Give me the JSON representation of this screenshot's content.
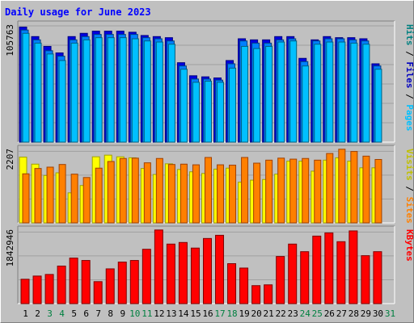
{
  "title": "Daily usage for June 2023",
  "colors": {
    "background": "#c0c0c0",
    "title": "#0000ff",
    "hits": "#0080ff",
    "hits_edge": "#0000c0",
    "files": "#00c0ff",
    "files_edge": "#0060a0",
    "pages": "#00e0ff",
    "visits": "#ffff00",
    "visits_edge": "#a0a000",
    "sites": "#ff8000",
    "sites_edge": "#a04000",
    "kbytes": "#ff0000",
    "kbytes_edge": "#800000",
    "weekend_day": "#008040",
    "weekday": "#000000"
  },
  "chart_data": [
    {
      "type": "bar",
      "panel": "hits",
      "legend": [
        {
          "label": "Pages",
          "color": "#00c0ff"
        },
        {
          "label": "Files",
          "color": "#0000c0"
        },
        {
          "label": "Hits",
          "color": "#008080"
        }
      ],
      "max_label": "105763",
      "ylim": [
        0,
        105763
      ],
      "categories": [
        "1",
        "2",
        "3",
        "4",
        "5",
        "6",
        "7",
        "8",
        "9",
        "10",
        "11",
        "12",
        "13",
        "14",
        "15",
        "16",
        "17",
        "18",
        "19",
        "20",
        "21",
        "22",
        "23",
        "24",
        "25",
        "26",
        "27",
        "28",
        "29",
        "30"
      ],
      "series": [
        {
          "name": "Hits",
          "values": [
            105763,
            97000,
            88000,
            82000,
            97000,
            100000,
            102000,
            102000,
            102000,
            101000,
            98000,
            97000,
            96000,
            73000,
            61000,
            60000,
            59000,
            75000,
            95000,
            94000,
            94000,
            97000,
            97000,
            77000,
            94000,
            97000,
            96000,
            96000,
            95000,
            72000
          ]
        },
        {
          "name": "Files",
          "values": [
            103000,
            94000,
            84000,
            79000,
            94000,
            97000,
            99000,
            99000,
            99000,
            99000,
            96000,
            95000,
            93000,
            70000,
            58000,
            58000,
            57000,
            72000,
            93000,
            91000,
            91000,
            94000,
            95000,
            74000,
            93000,
            95000,
            95000,
            94000,
            93000,
            70000
          ]
        },
        {
          "name": "Pages",
          "values": [
            100000,
            91000,
            81000,
            75000,
            91000,
            94000,
            96000,
            96000,
            96000,
            95000,
            93000,
            92000,
            90000,
            67000,
            55000,
            56000,
            55000,
            68000,
            88000,
            86000,
            88000,
            92000,
            93000,
            70000,
            90000,
            92000,
            92000,
            91000,
            90000,
            67000
          ]
        }
      ]
    },
    {
      "type": "bar",
      "panel": "visits",
      "legend": [
        {
          "label": "Sites",
          "color": "#ff8000"
        },
        {
          "label": "Visits",
          "color": "#c0c000"
        }
      ],
      "max_label": "2207",
      "ylim": [
        0,
        2207
      ],
      "categories": [
        "1",
        "2",
        "3",
        "4",
        "5",
        "6",
        "7",
        "8",
        "9",
        "10",
        "11",
        "12",
        "13",
        "14",
        "15",
        "16",
        "17",
        "18",
        "19",
        "20",
        "21",
        "22",
        "23",
        "24",
        "25",
        "26",
        "27",
        "28",
        "29",
        "30"
      ],
      "series": [
        {
          "name": "Visits",
          "values": [
            1970,
            1760,
            1420,
            1500,
            900,
            1120,
            1980,
            2030,
            1980,
            1950,
            1630,
            1450,
            1770,
            1600,
            1530,
            1480,
            1610,
            1640,
            1220,
            1280,
            1300,
            1460,
            1850,
            1850,
            1550,
            1880,
            1950,
            1850,
            1650,
            1650
          ]
        },
        {
          "name": "Sites",
          "values": [
            1470,
            1630,
            1670,
            1750,
            1460,
            1360,
            1640,
            1840,
            1930,
            1940,
            1800,
            1930,
            1750,
            1760,
            1740,
            1960,
            1740,
            1730,
            1960,
            1790,
            1880,
            1940,
            1910,
            1930,
            1880,
            2080,
            2207,
            2140,
            2000,
            1900
          ]
        }
      ]
    },
    {
      "type": "bar",
      "panel": "kbytes",
      "legend": [
        {
          "label": "KBytes",
          "color": "#ff0000"
        }
      ],
      "max_label": "1842946",
      "ylim": [
        0,
        1842946
      ],
      "categories": [
        "1",
        "2",
        "3",
        "4",
        "5",
        "6",
        "7",
        "8",
        "9",
        "10",
        "11",
        "12",
        "13",
        "14",
        "15",
        "16",
        "17",
        "18",
        "19",
        "20",
        "21",
        "22",
        "23",
        "24",
        "25",
        "26",
        "27",
        "28",
        "29",
        "30"
      ],
      "series": [
        {
          "name": "KBytes",
          "values": [
            610000,
            690000,
            730000,
            940000,
            1140000,
            1080000,
            550000,
            870000,
            1040000,
            1080000,
            1360000,
            1842946,
            1490000,
            1530000,
            1390000,
            1630000,
            1710000,
            1000000,
            890000,
            450000,
            470000,
            1180000,
            1490000,
            1300000,
            1690000,
            1770000,
            1550000,
            1820000,
            1200000,
            1300000
          ]
        }
      ]
    }
  ],
  "x_axis_labels": [
    {
      "day": "1",
      "weekend": false
    },
    {
      "day": "2",
      "weekend": false
    },
    {
      "day": "3",
      "weekend": true
    },
    {
      "day": "4",
      "weekend": true
    },
    {
      "day": "5",
      "weekend": false
    },
    {
      "day": "6",
      "weekend": false
    },
    {
      "day": "7",
      "weekend": false
    },
    {
      "day": "8",
      "weekend": false
    },
    {
      "day": "9",
      "weekend": false
    },
    {
      "day": "10",
      "weekend": true
    },
    {
      "day": "11",
      "weekend": true
    },
    {
      "day": "12",
      "weekend": false
    },
    {
      "day": "13",
      "weekend": false
    },
    {
      "day": "14",
      "weekend": false
    },
    {
      "day": "15",
      "weekend": false
    },
    {
      "day": "16",
      "weekend": false
    },
    {
      "day": "17",
      "weekend": true
    },
    {
      "day": "18",
      "weekend": true
    },
    {
      "day": "19",
      "weekend": false
    },
    {
      "day": "20",
      "weekend": false
    },
    {
      "day": "21",
      "weekend": false
    },
    {
      "day": "22",
      "weekend": false
    },
    {
      "day": "23",
      "weekend": false
    },
    {
      "day": "24",
      "weekend": true
    },
    {
      "day": "25",
      "weekend": true
    },
    {
      "day": "26",
      "weekend": false
    },
    {
      "day": "27",
      "weekend": false
    },
    {
      "day": "28",
      "weekend": false
    },
    {
      "day": "29",
      "weekend": false
    },
    {
      "day": "30",
      "weekend": false
    },
    {
      "day": "31",
      "weekend": true
    }
  ]
}
